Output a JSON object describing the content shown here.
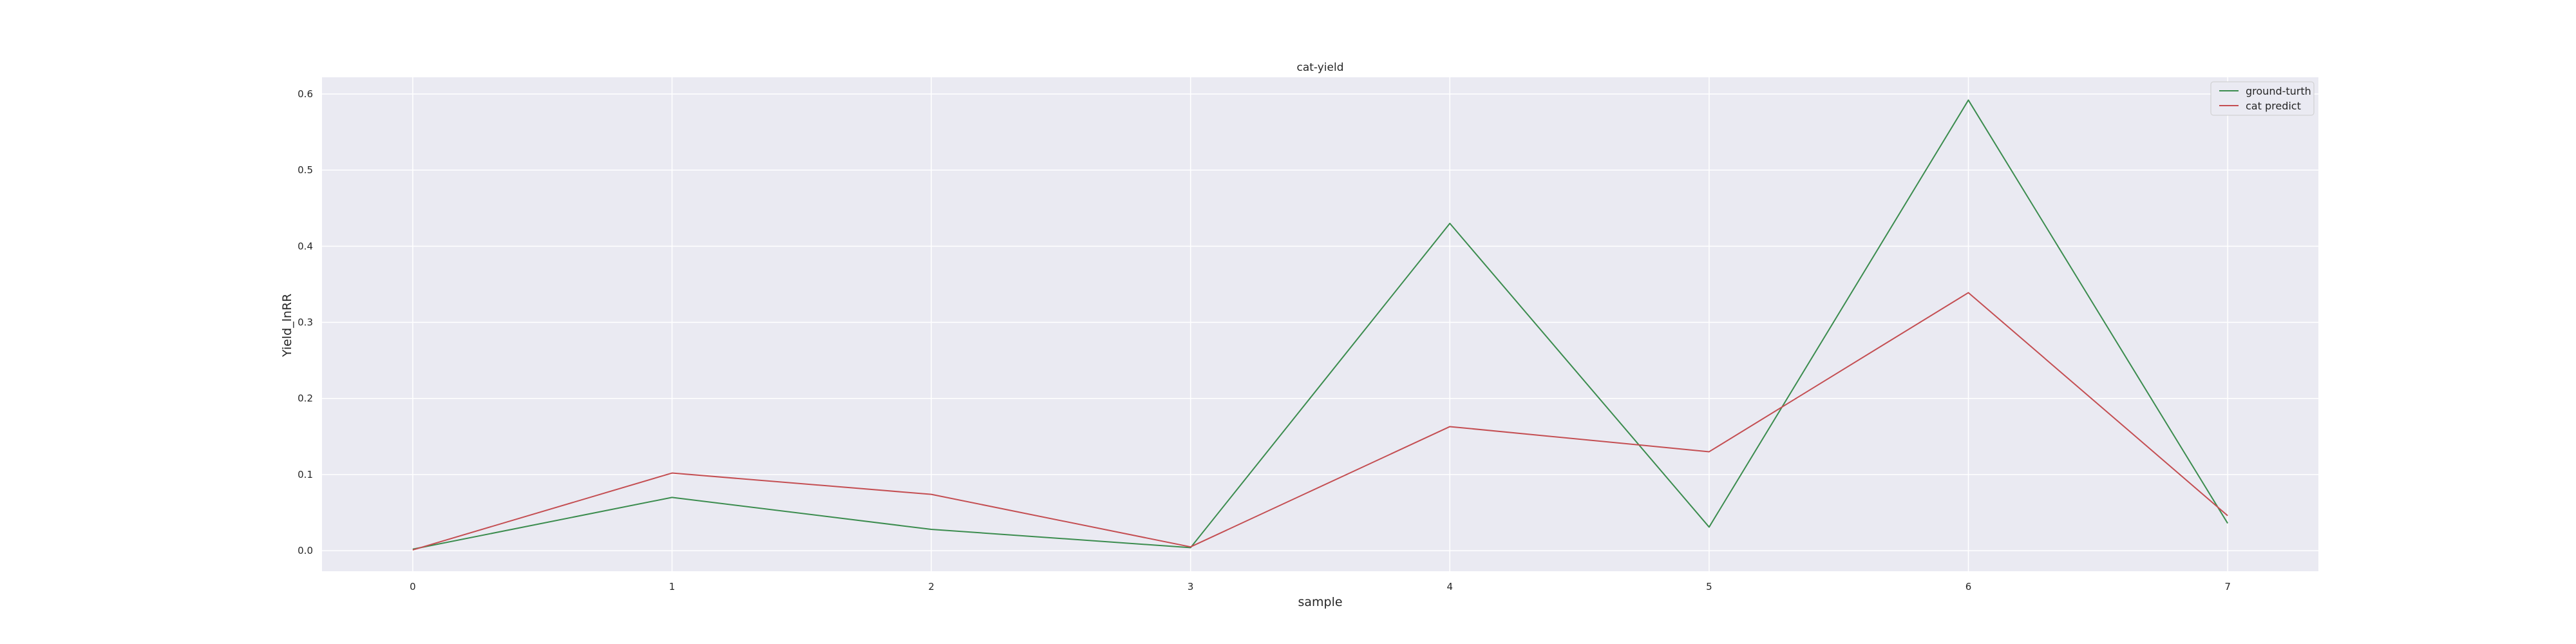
{
  "chart_data": {
    "type": "line",
    "title": "cat-yield",
    "xlabel": "sample",
    "ylabel": "Yield_lnRR",
    "x": [
      0,
      1,
      2,
      3,
      4,
      5,
      6,
      7
    ],
    "xlim": [
      -0.35,
      7.35
    ],
    "ylim": [
      -0.027,
      0.622
    ],
    "xticks": [
      0,
      1,
      2,
      3,
      4,
      5,
      6,
      7
    ],
    "yticks": [
      0.0,
      0.1,
      0.2,
      0.3,
      0.4,
      0.5,
      0.6
    ],
    "ytick_labels": [
      "0.0",
      "0.1",
      "0.2",
      "0.3",
      "0.4",
      "0.5",
      "0.6"
    ],
    "grid": true,
    "legend_position": "top-right",
    "background_color": "#eaeaf2",
    "grid_color": "#ffffff",
    "series": [
      {
        "name": "ground-turth",
        "color": "#3b8c4e",
        "values": [
          0.002,
          0.07,
          0.028,
          0.004,
          0.43,
          0.031,
          0.592,
          0.036
        ]
      },
      {
        "name": "cat predict",
        "color": "#c44e52",
        "values": [
          0.001,
          0.102,
          0.074,
          0.005,
          0.163,
          0.13,
          0.339,
          0.046
        ]
      }
    ]
  }
}
